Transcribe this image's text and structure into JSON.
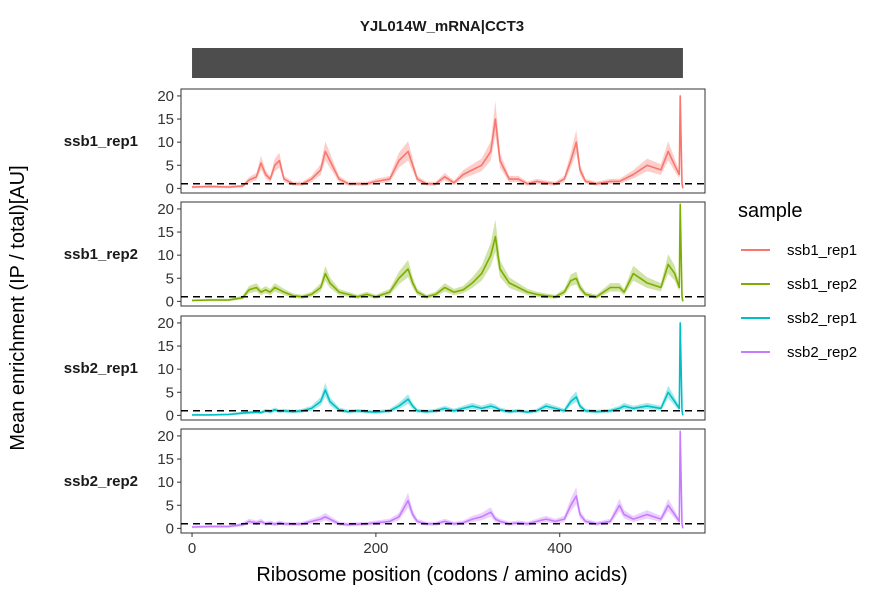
{
  "chart_data": {
    "type": "line",
    "title": "YJL014W_mRNA|CCT3",
    "xlabel": "Ribosome position (codons / amino acids)",
    "ylabel": "Mean enrichment (IP / total)[AU]",
    "xlim": [
      -12,
      558
    ],
    "ylim": [
      -1,
      21.5
    ],
    "x_ticks": [
      0,
      200,
      400
    ],
    "y_ticks": [
      0,
      5,
      10,
      15,
      20
    ],
    "reference_line_y": 1,
    "gene_bar": {
      "start": 0,
      "end": 534
    },
    "legend": {
      "title": "sample",
      "position": "right"
    },
    "facets": [
      "ssb1_rep1",
      "ssb1_rep2",
      "ssb2_rep1",
      "ssb2_rep2"
    ],
    "series": [
      {
        "name": "ssb1_rep1",
        "color": "#F8766D",
        "x": [
          0,
          20,
          40,
          55,
          62,
          70,
          75,
          80,
          85,
          90,
          95,
          100,
          110,
          120,
          130,
          140,
          145,
          150,
          160,
          170,
          180,
          190,
          200,
          215,
          225,
          235,
          240,
          245,
          255,
          265,
          275,
          285,
          295,
          305,
          315,
          325,
          330,
          335,
          345,
          355,
          365,
          375,
          385,
          395,
          405,
          412,
          418,
          422,
          428,
          440,
          455,
          465,
          470,
          480,
          495,
          510,
          518,
          525,
          530,
          531,
          533,
          534
        ],
        "y": [
          0.3,
          0.4,
          0.3,
          0.5,
          1.8,
          2.5,
          5.5,
          3,
          2,
          5,
          6,
          2,
          1,
          1,
          2,
          4,
          8,
          6,
          2,
          1,
          1,
          1,
          1.5,
          2,
          6,
          8,
          5,
          2,
          1,
          1,
          2.5,
          1.2,
          3,
          4,
          5,
          8,
          15,
          6,
          2,
          2,
          1,
          1.5,
          1.2,
          1,
          2,
          6,
          10,
          4,
          1.5,
          1,
          1.5,
          1.5,
          2,
          3,
          5,
          4,
          8,
          5,
          3,
          20,
          1,
          0
        ]
      },
      {
        "name": "ssb1_rep2",
        "color": "#7CAE00",
        "x": [
          0,
          20,
          40,
          55,
          62,
          70,
          75,
          80,
          85,
          90,
          95,
          100,
          110,
          120,
          130,
          140,
          145,
          150,
          160,
          170,
          180,
          190,
          200,
          215,
          225,
          235,
          240,
          245,
          255,
          265,
          275,
          285,
          295,
          305,
          315,
          325,
          330,
          335,
          345,
          355,
          365,
          375,
          385,
          395,
          405,
          412,
          418,
          422,
          428,
          440,
          455,
          465,
          470,
          480,
          495,
          510,
          518,
          525,
          530,
          531,
          533,
          534
        ],
        "y": [
          0.2,
          0.3,
          0.3,
          0.8,
          2.5,
          3,
          2,
          2.5,
          2,
          3,
          2.5,
          2,
          1.2,
          1,
          1.5,
          3,
          6,
          4,
          2,
          1.5,
          1,
          1.5,
          1,
          2,
          5,
          7,
          4,
          2,
          1,
          1.5,
          3,
          2,
          2.5,
          4,
          6,
          10,
          14,
          7,
          4,
          3,
          2,
          1.5,
          1.2,
          1,
          2,
          4.5,
          5,
          3,
          1.5,
          1,
          3,
          3,
          2,
          6,
          4,
          3,
          8,
          6,
          3,
          21,
          1,
          0
        ]
      },
      {
        "name": "ssb2_rep1",
        "color": "#00BFC4",
        "x": [
          0,
          20,
          40,
          55,
          62,
          70,
          75,
          80,
          85,
          90,
          95,
          100,
          110,
          120,
          130,
          140,
          145,
          150,
          160,
          170,
          180,
          190,
          200,
          215,
          225,
          235,
          240,
          245,
          255,
          265,
          275,
          285,
          295,
          305,
          315,
          325,
          330,
          335,
          345,
          355,
          365,
          375,
          385,
          395,
          405,
          412,
          418,
          422,
          428,
          440,
          455,
          465,
          470,
          480,
          495,
          510,
          518,
          525,
          530,
          531,
          533,
          534
        ],
        "y": [
          0.1,
          0.1,
          0.2,
          0.5,
          0.6,
          0.7,
          0.6,
          1,
          0.8,
          1.2,
          0.9,
          1,
          0.8,
          1,
          1.5,
          3,
          5.5,
          3,
          1.2,
          0.8,
          1,
          0.8,
          0.7,
          1,
          2,
          3.5,
          2,
          1,
          0.8,
          1,
          1.5,
          1,
          1.5,
          2,
          1.5,
          2,
          1.7,
          1.2,
          0.8,
          1,
          0.7,
          1,
          2,
          1.5,
          1,
          3,
          4,
          2,
          1,
          0.8,
          1,
          1.5,
          2,
          1.5,
          2,
          1.5,
          5,
          3,
          1.5,
          20,
          1,
          0
        ]
      },
      {
        "name": "ssb2_rep2",
        "color": "#C77CFF",
        "x": [
          0,
          20,
          40,
          55,
          62,
          70,
          75,
          80,
          85,
          90,
          95,
          100,
          110,
          120,
          130,
          140,
          145,
          150,
          160,
          170,
          180,
          190,
          200,
          215,
          225,
          235,
          240,
          245,
          255,
          265,
          275,
          285,
          295,
          305,
          315,
          325,
          330,
          335,
          345,
          355,
          365,
          375,
          385,
          395,
          405,
          412,
          418,
          422,
          428,
          440,
          455,
          465,
          470,
          480,
          495,
          510,
          518,
          525,
          530,
          531,
          533,
          534
        ],
        "y": [
          0.3,
          0.4,
          0.4,
          0.8,
          1.5,
          1.2,
          1.5,
          1,
          1.2,
          0.9,
          1.2,
          1,
          0.9,
          1,
          1.5,
          2,
          2.5,
          2,
          1,
          0.8,
          0.9,
          1,
          1.2,
          1.5,
          2.5,
          6,
          3,
          1.5,
          1,
          1,
          1.5,
          1,
          1.2,
          2,
          2.5,
          3.5,
          2,
          1.5,
          1,
          1.2,
          1,
          1.5,
          2,
          1.5,
          2,
          5,
          7,
          3,
          1.5,
          1,
          1.5,
          5,
          3,
          2,
          3,
          2,
          5,
          3,
          1.5,
          21,
          1,
          0
        ]
      }
    ]
  }
}
